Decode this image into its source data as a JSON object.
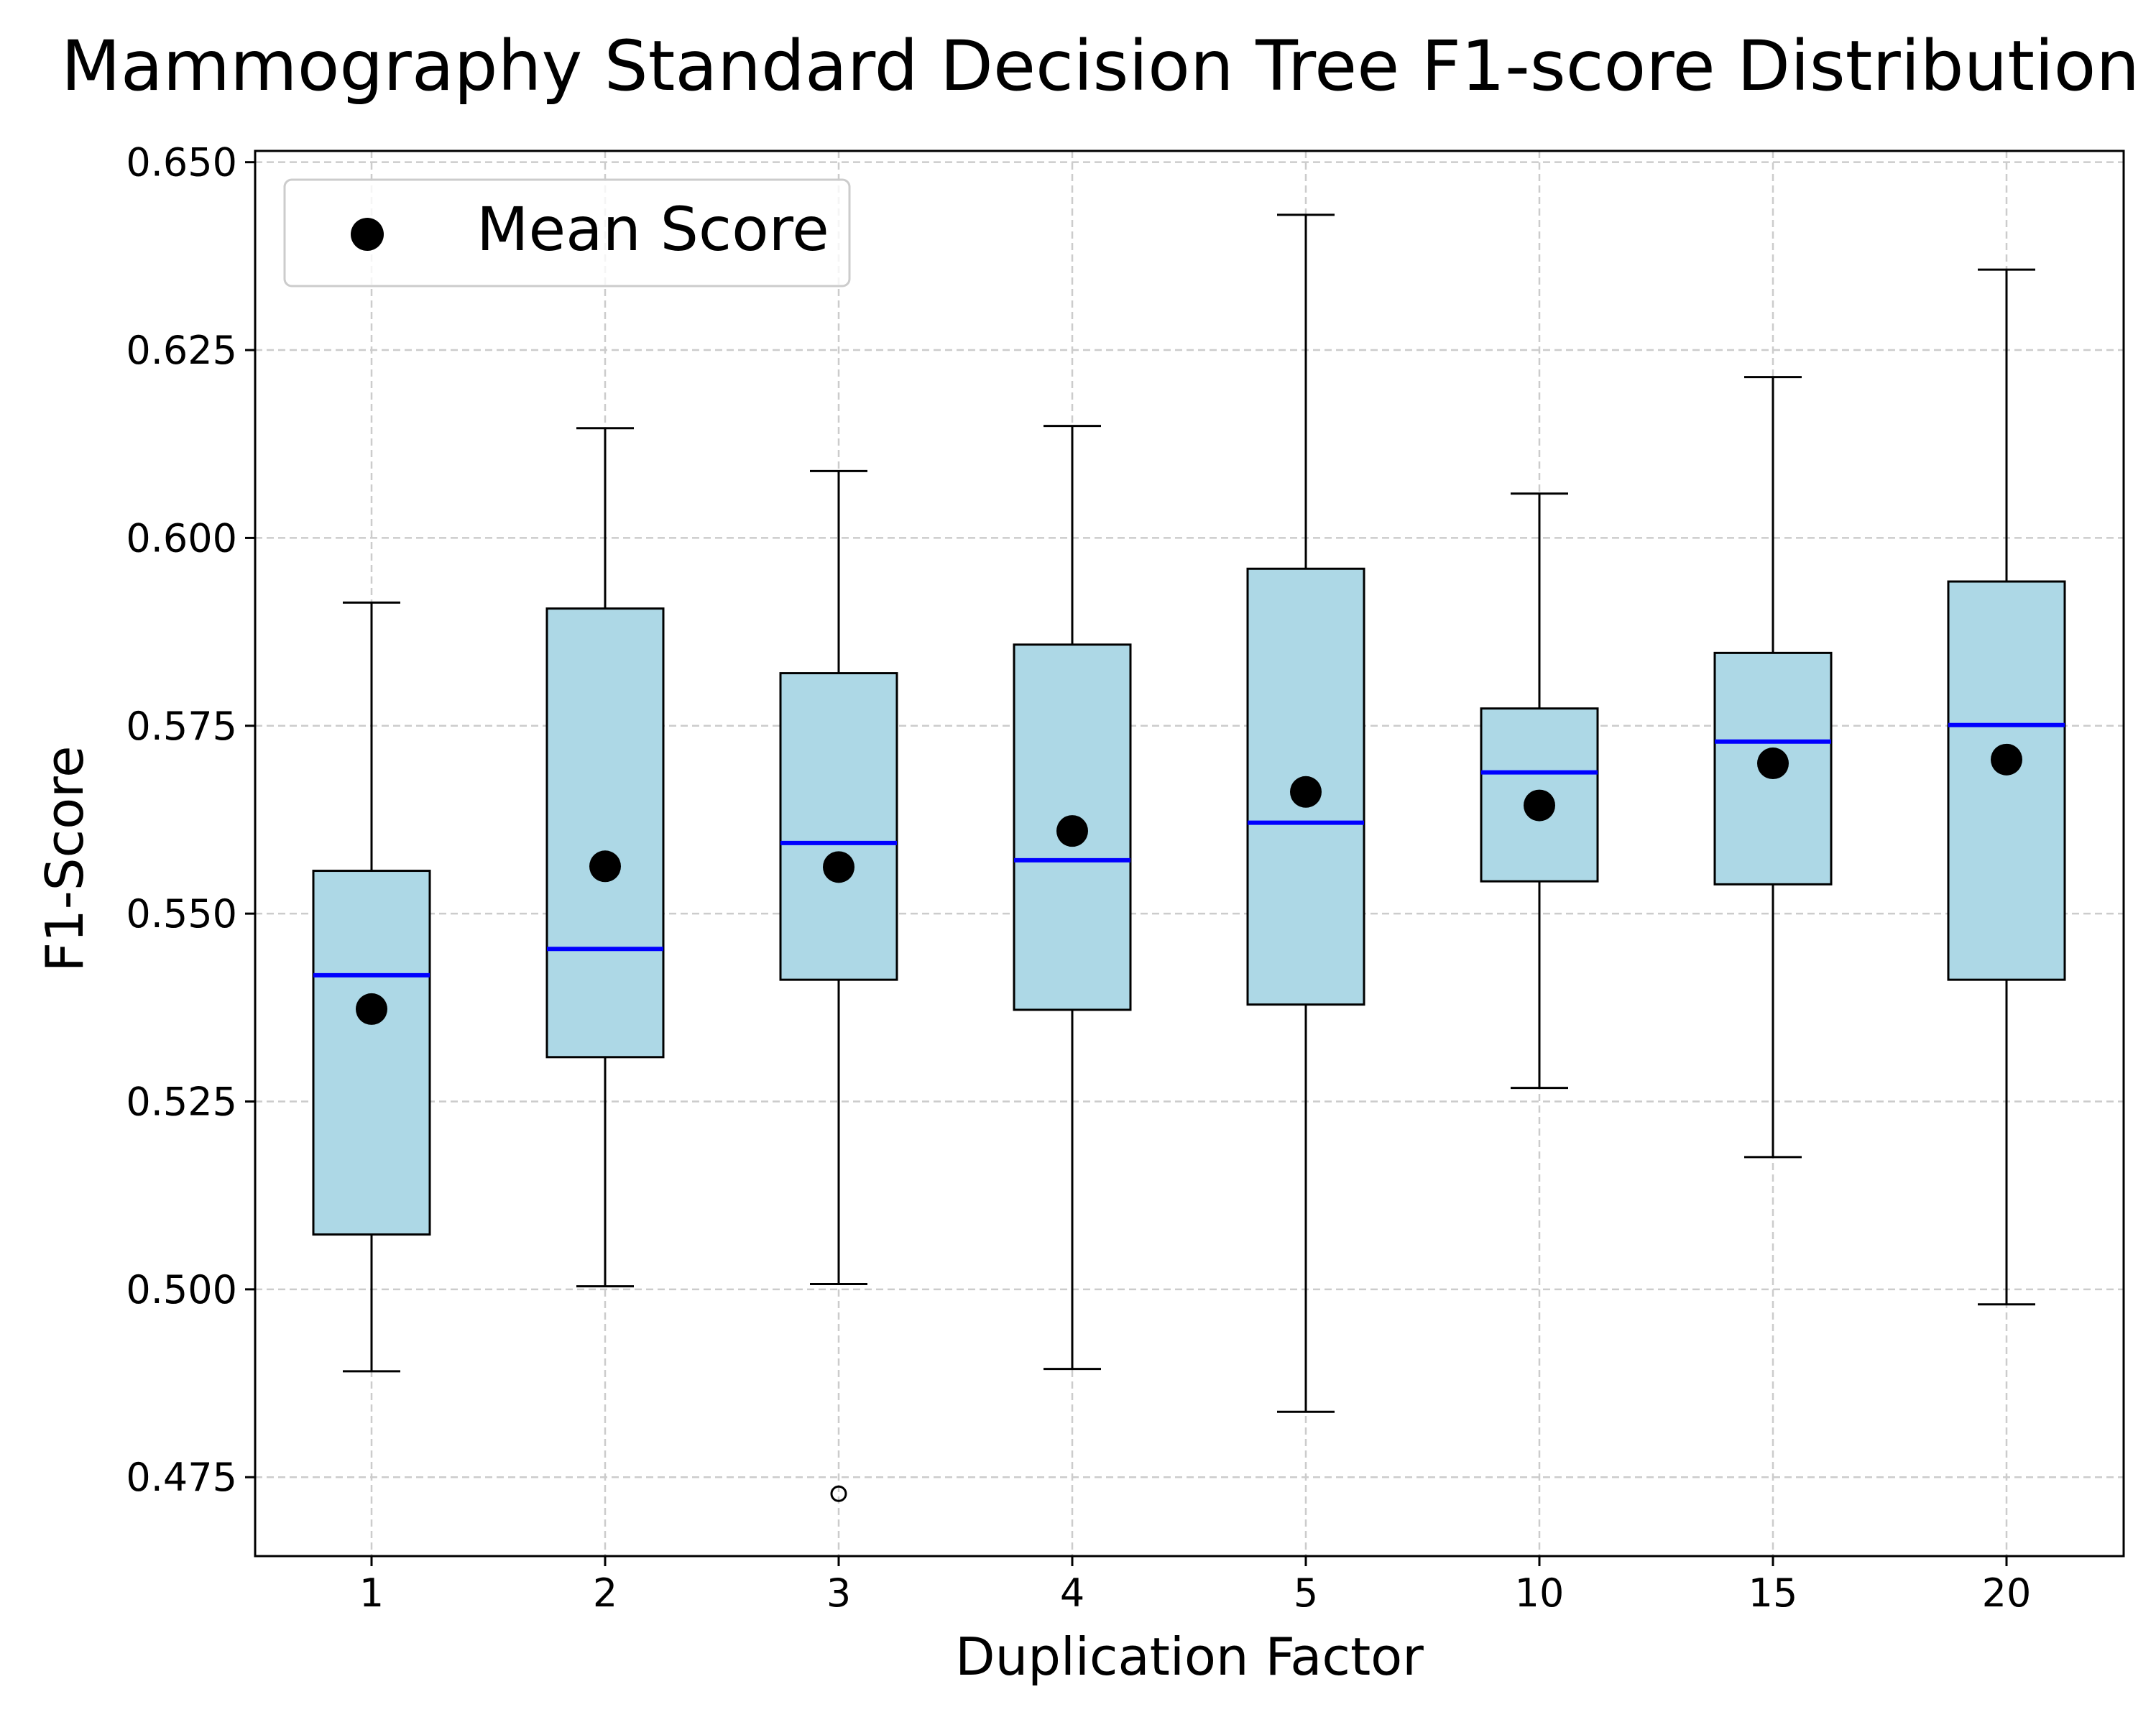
{
  "chart_data": {
    "type": "box",
    "title": "Mammography Standard Decision Tree F1-score Distribution",
    "xlabel": "Duplication Factor",
    "ylabel": "F1-Score",
    "ylim": [
      0.4645,
      0.6515
    ],
    "yticks": [
      "0.475",
      "0.500",
      "0.525",
      "0.550",
      "0.575",
      "0.600",
      "0.625",
      "0.650"
    ],
    "grid": true,
    "legend": {
      "position": "upper-left",
      "label": "Mean Score"
    },
    "colors": {
      "box_fill": "#add8e6",
      "median": "#0000ff",
      "mean_marker": "#000000",
      "grid": "#cccccc"
    },
    "categories": [
      "1",
      "2",
      "3",
      "4",
      "5",
      "10",
      "15",
      "20"
    ],
    "boxes": [
      {
        "whisker_low": 0.4891,
        "q1": 0.5073,
        "median": 0.5418,
        "q3": 0.5557,
        "whisker_high": 0.5914,
        "mean": 0.5373,
        "outliers": []
      },
      {
        "whisker_low": 0.5004,
        "q1": 0.5309,
        "median": 0.5453,
        "q3": 0.5906,
        "whisker_high": 0.6146,
        "mean": 0.5563,
        "outliers": []
      },
      {
        "whisker_low": 0.5007,
        "q1": 0.5412,
        "median": 0.5594,
        "q3": 0.582,
        "whisker_high": 0.6089,
        "mean": 0.5562,
        "outliers": [
          0.4728
        ]
      },
      {
        "whisker_low": 0.4894,
        "q1": 0.5372,
        "median": 0.5571,
        "q3": 0.5858,
        "whisker_high": 0.6149,
        "mean": 0.561,
        "outliers": []
      },
      {
        "whisker_low": 0.4837,
        "q1": 0.5379,
        "median": 0.5621,
        "q3": 0.5959,
        "whisker_high": 0.643,
        "mean": 0.5662,
        "outliers": []
      },
      {
        "whisker_low": 0.5268,
        "q1": 0.5543,
        "median": 0.5688,
        "q3": 0.5773,
        "whisker_high": 0.6059,
        "mean": 0.5644,
        "outliers": []
      },
      {
        "whisker_low": 0.5176,
        "q1": 0.5539,
        "median": 0.5729,
        "q3": 0.5847,
        "whisker_high": 0.6214,
        "mean": 0.57,
        "outliers": []
      },
      {
        "whisker_low": 0.498,
        "q1": 0.5412,
        "median": 0.5751,
        "q3": 0.5942,
        "whisker_high": 0.6357,
        "mean": 0.5705,
        "outliers": []
      }
    ]
  }
}
